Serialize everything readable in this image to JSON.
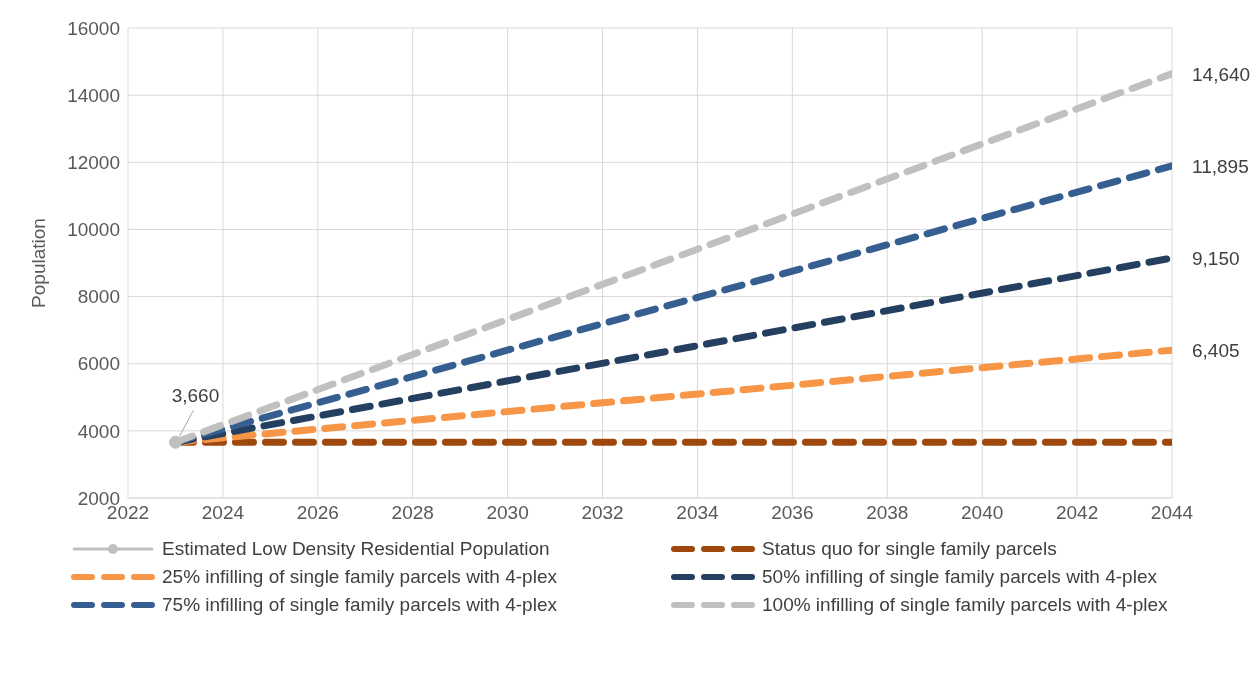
{
  "chart_data": {
    "type": "line",
    "ylabel": "Population",
    "xlim": [
      "2022",
      "2044"
    ],
    "xticks": [
      "2022",
      "2024",
      "2026",
      "2028",
      "2030",
      "2032",
      "2034",
      "2036",
      "2038",
      "2040",
      "2042",
      "2044"
    ],
    "ylim": [
      2000,
      16000
    ],
    "yticks": [
      2000,
      4000,
      6000,
      8000,
      10000,
      12000,
      14000,
      16000
    ],
    "grid": true,
    "legend": "bottom",
    "series": [
      {
        "name": "Estimated Low Density Residential Population",
        "color": "#bfbfbf",
        "x": [
          "2023"
        ],
        "values": [
          3660
        ],
        "value_labels": [
          "3,660"
        ],
        "marker": "circle",
        "line_style": "solid"
      },
      {
        "name": "Status quo for single family parcels",
        "color": "#9e480e",
        "x": [
          "2023",
          "2044"
        ],
        "values": [
          3660,
          3660
        ],
        "line_style": "dashed",
        "marker": "none"
      },
      {
        "name": "25% infilling of single family parcels with 4-plex",
        "color": "#f79646",
        "x": [
          "2023",
          "2044"
        ],
        "values": [
          3660,
          6405
        ],
        "value_labels": [
          null,
          "6,405"
        ],
        "line_style": "dashed",
        "marker": "none"
      },
      {
        "name": "50% infilling of single family parcels with 4-plex",
        "color": "#243f60",
        "x": [
          "2023",
          "2044"
        ],
        "values": [
          3660,
          9150
        ],
        "value_labels": [
          null,
          "9,150"
        ],
        "line_style": "dashed",
        "marker": "none"
      },
      {
        "name": "75% infilling of single family parcels with 4-plex",
        "color": "#365f91",
        "x": [
          "2023",
          "2044"
        ],
        "values": [
          3660,
          11895
        ],
        "value_labels": [
          null,
          "11,895"
        ],
        "line_style": "dashed",
        "marker": "none"
      },
      {
        "name": "100% infilling of single family parcels with 4-plex",
        "color": "#c0c0c0",
        "x": [
          "2023",
          "2044"
        ],
        "values": [
          3660,
          14640
        ],
        "value_labels": [
          null,
          "14,640"
        ],
        "line_style": "dashed",
        "marker": "none"
      }
    ]
  }
}
